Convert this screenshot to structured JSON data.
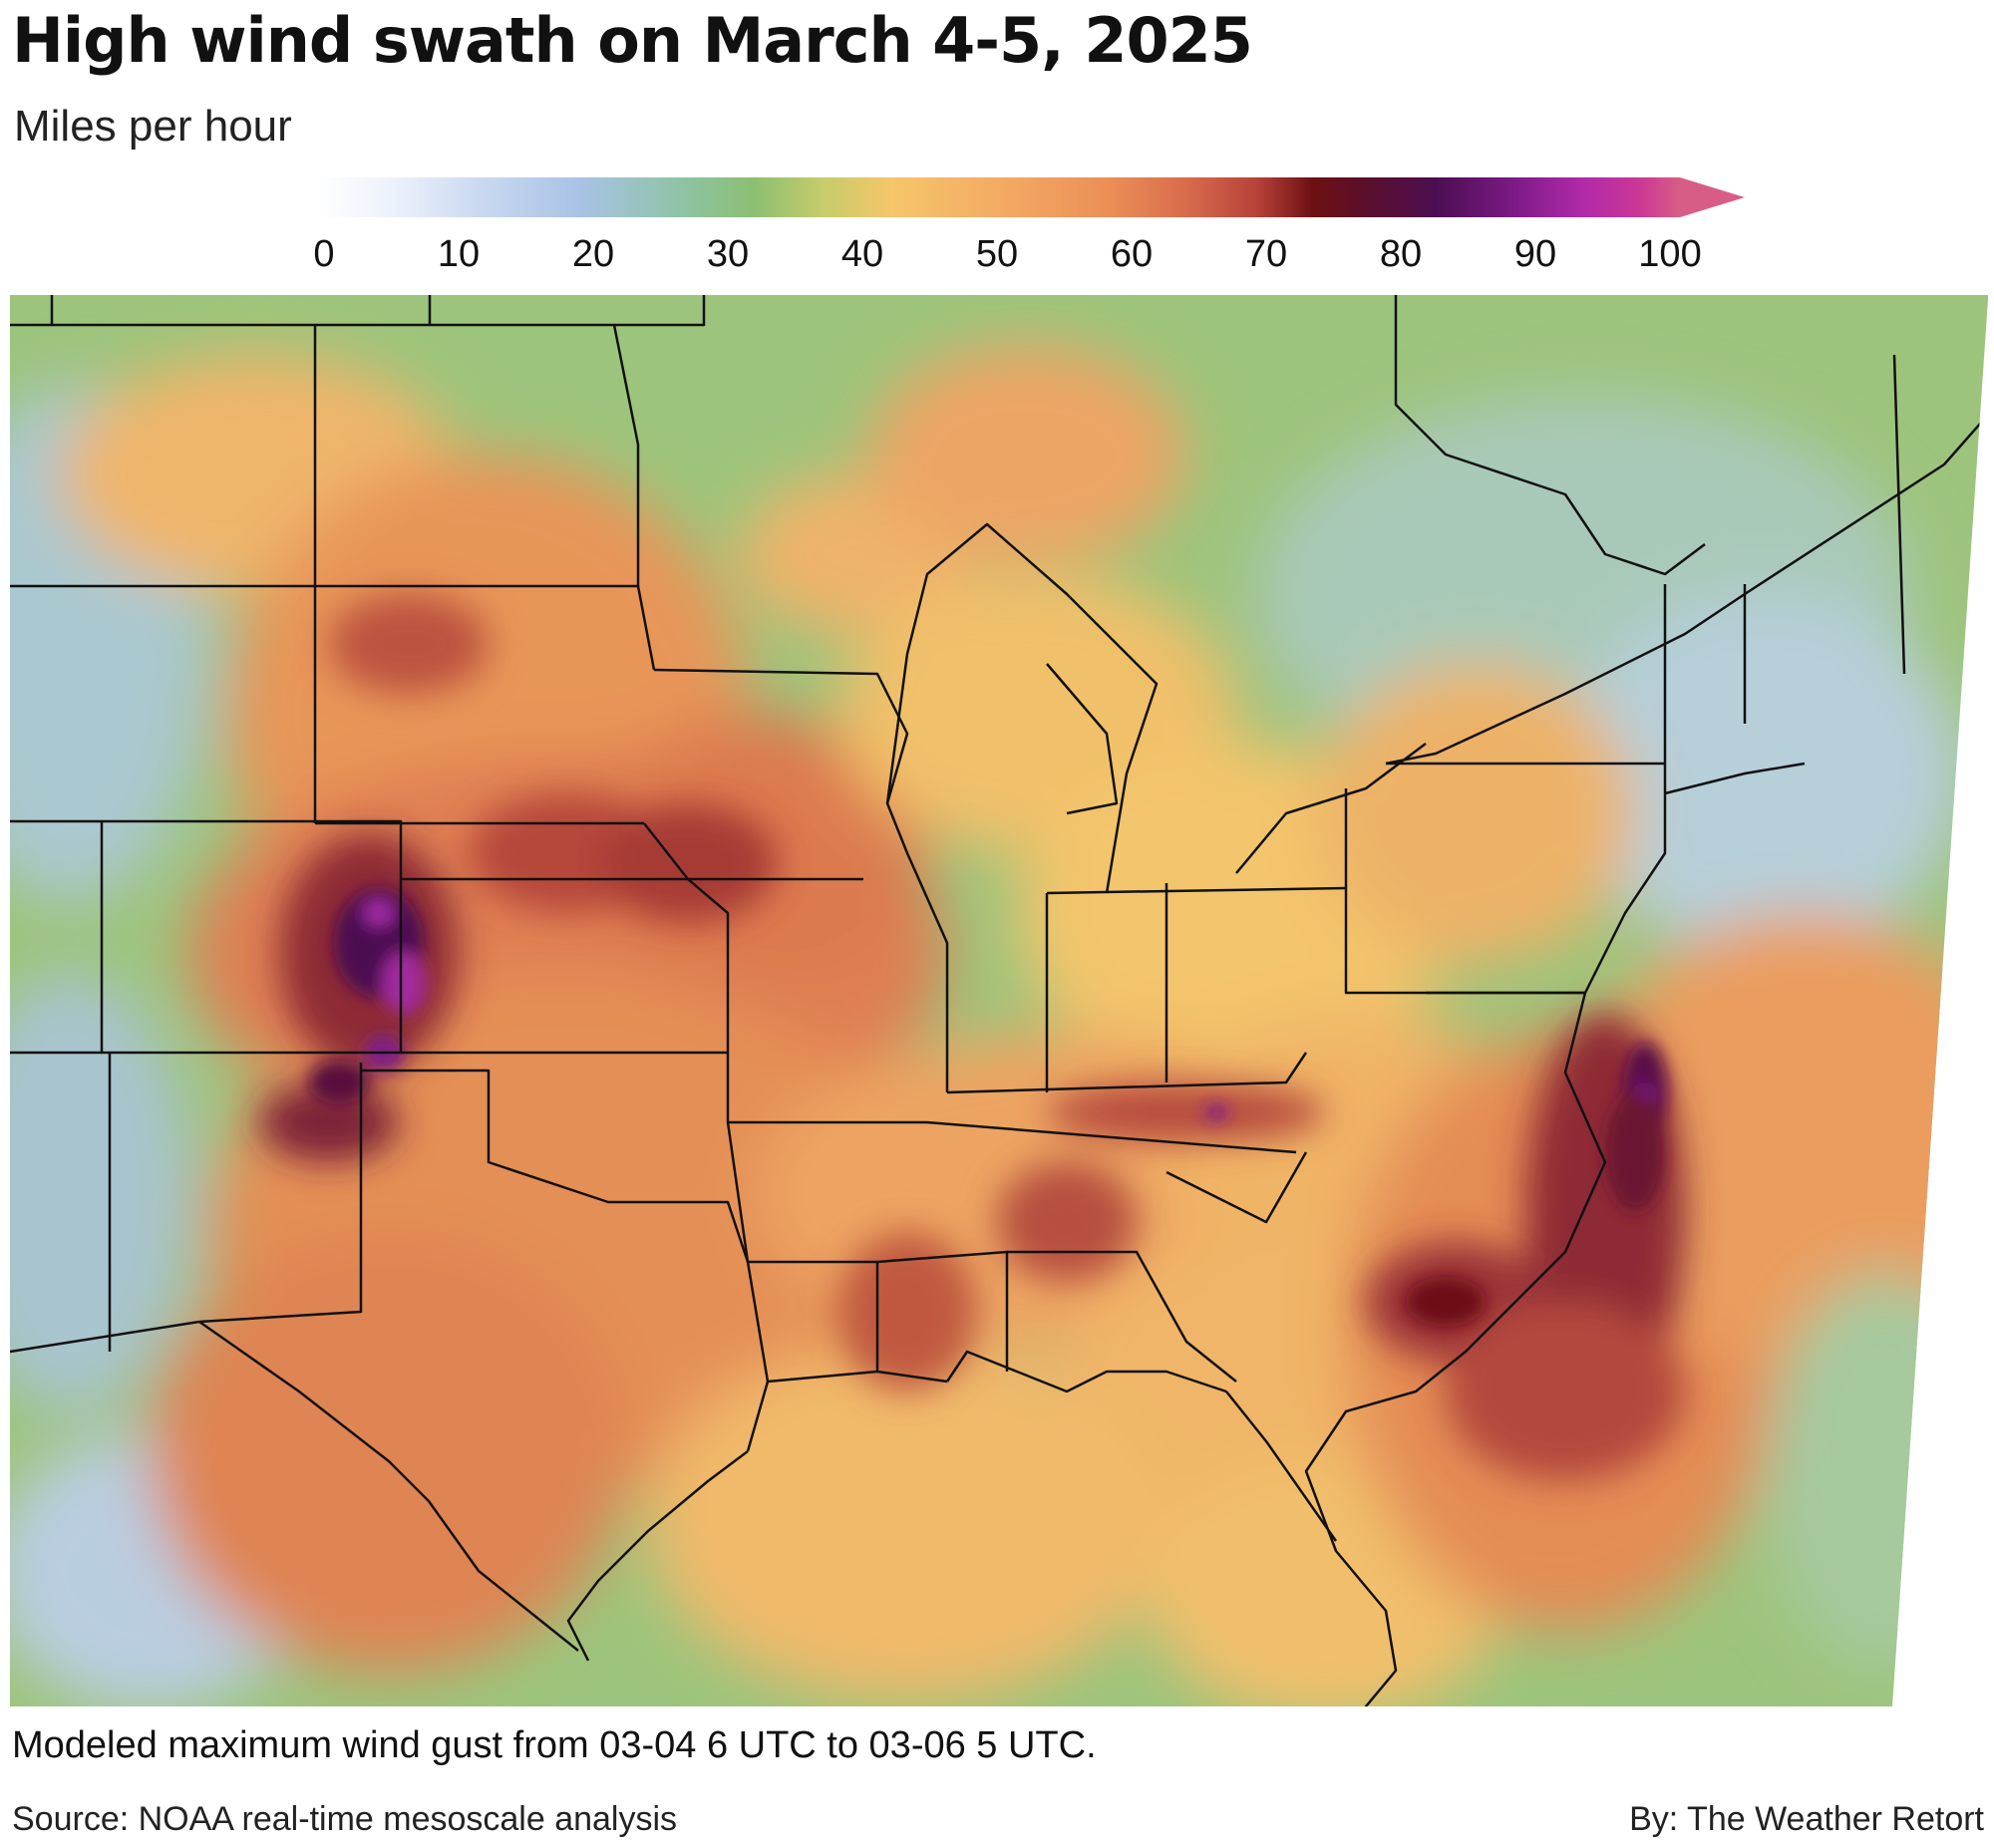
{
  "header": {
    "title": "High wind swath on March 4-5, 2025",
    "subtitle": "Miles per hour"
  },
  "legend": {
    "ticks": [
      "0",
      "10",
      "20",
      "30",
      "40",
      "50",
      "60",
      "70",
      "80",
      "90",
      "100"
    ],
    "colors": [
      "#ffffff",
      "#a9c3e6",
      "#8dbf71",
      "#f5c66a",
      "#eb8f57",
      "#b64139",
      "#6e1013",
      "#4b0e51",
      "#b32aa9",
      "#d85d86"
    ]
  },
  "map": {
    "region": "Contiguous United States (central and eastern)",
    "peak_areas": [
      "Colorado Front Range",
      "Southeastern Virginia coast",
      "Offshore Carolinas"
    ]
  },
  "footer": {
    "caption": "Modeled maximum wind gust from 03-04 6 UTC to 03-06 5 UTC.",
    "source": "Source: NOAA real-time mesoscale analysis",
    "byline": "By: The Weather Retort"
  }
}
